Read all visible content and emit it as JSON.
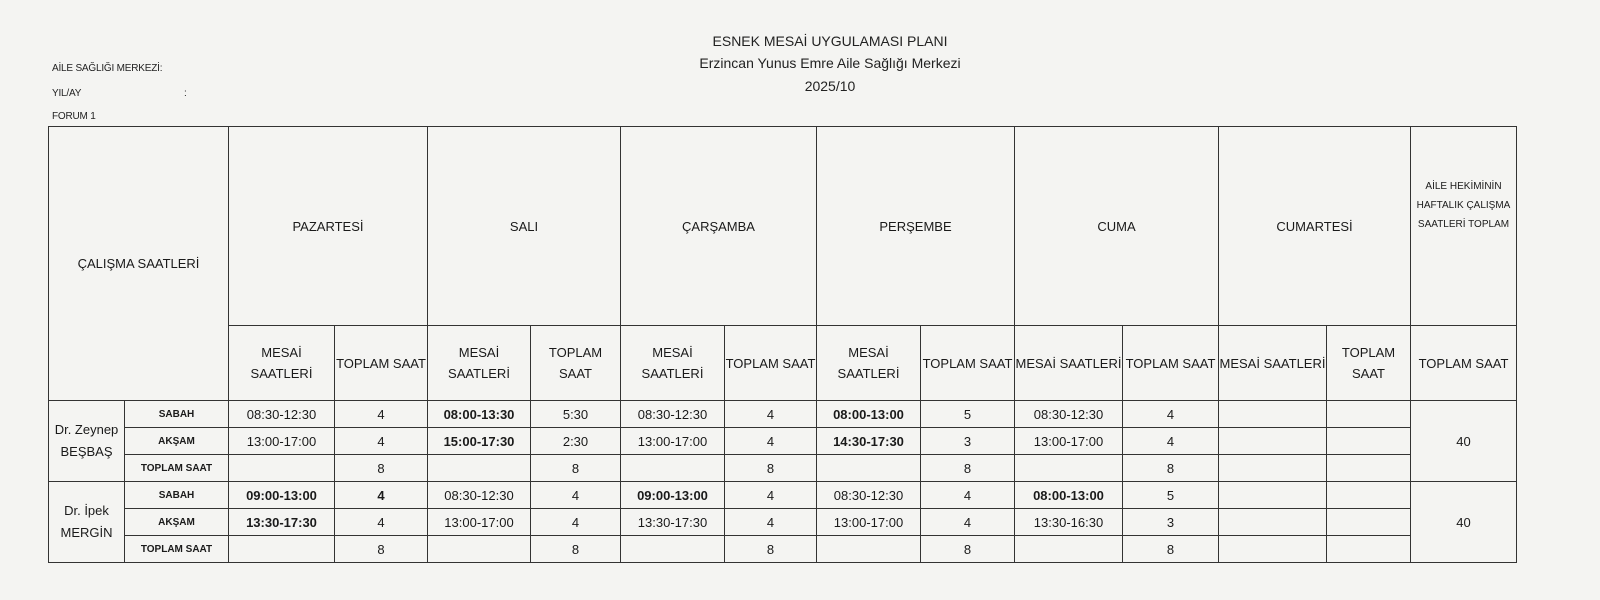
{
  "header": {
    "left_labels": [
      "AİLE SAĞLIĞI MERKEZİ:",
      "YIL/AY",
      ":",
      "FORUM 1"
    ],
    "title": "ESNEK MESAİ UYGULAMASI  PLANI",
    "center_name": "Erzincan Yunus Emre Aile Sağlığı Merkezi",
    "period": "2025/10"
  },
  "table": {
    "corner_label": "ÇALIŞMA SAATLERİ",
    "days": [
      "PAZARTESİ",
      "SALI",
      "ÇARŞAMBA",
      "PERŞEMBE",
      "CUMA",
      "CUMARTESİ"
    ],
    "weekly_total_header": "AİLE HEKİMİNİN HAFTALIK ÇALIŞMA SAATLERİ TOPLAM",
    "sub_mesai": "MESAİ SAATLERİ",
    "sub_toplam": "TOPLAM SAAT",
    "sub_weekly": "TOPLAM SAAT",
    "doctors": [
      {
        "name": "Dr. Zeynep BEŞBAŞ",
        "weekly_total": "40",
        "rows": [
          {
            "label": "SABAH",
            "cells": [
              {
                "v": "08:30-12:30"
              },
              {
                "v": "4"
              },
              {
                "v": "08:00-13:30",
                "bold": true
              },
              {
                "v": "5:30"
              },
              {
                "v": "08:30-12:30"
              },
              {
                "v": "4"
              },
              {
                "v": "08:00-13:00",
                "bold": true
              },
              {
                "v": "5"
              },
              {
                "v": "08:30-12:30"
              },
              {
                "v": "4"
              },
              {
                "v": ""
              },
              {
                "v": ""
              }
            ]
          },
          {
            "label": "AKŞAM",
            "cells": [
              {
                "v": "13:00-17:00"
              },
              {
                "v": "4"
              },
              {
                "v": "15:00-17:30",
                "bold": true
              },
              {
                "v": "2:30"
              },
              {
                "v": "13:00-17:00"
              },
              {
                "v": "4"
              },
              {
                "v": "14:30-17:30",
                "bold": true
              },
              {
                "v": "3"
              },
              {
                "v": "13:00-17:00"
              },
              {
                "v": "4"
              },
              {
                "v": ""
              },
              {
                "v": ""
              }
            ]
          },
          {
            "label": "TOPLAM SAAT",
            "cells": [
              {
                "v": ""
              },
              {
                "v": "8"
              },
              {
                "v": ""
              },
              {
                "v": "8"
              },
              {
                "v": ""
              },
              {
                "v": "8"
              },
              {
                "v": ""
              },
              {
                "v": "8"
              },
              {
                "v": ""
              },
              {
                "v": "8"
              },
              {
                "v": ""
              },
              {
                "v": ""
              }
            ]
          }
        ]
      },
      {
        "name": "Dr. İpek MERGİN",
        "weekly_total": "40",
        "rows": [
          {
            "label": "SABAH",
            "cells": [
              {
                "v": "09:00-13:00",
                "bold": true
              },
              {
                "v": "4",
                "bold": true
              },
              {
                "v": "08:30-12:30"
              },
              {
                "v": "4"
              },
              {
                "v": "09:00-13:00",
                "bold": true
              },
              {
                "v": "4"
              },
              {
                "v": "08:30-12:30"
              },
              {
                "v": "4"
              },
              {
                "v": "08:00-13:00",
                "bold": true
              },
              {
                "v": "5"
              },
              {
                "v": ""
              },
              {
                "v": ""
              }
            ]
          },
          {
            "label": "AKŞAM",
            "cells": [
              {
                "v": "13:30-17:30",
                "bold": true
              },
              {
                "v": "4"
              },
              {
                "v": "13:00-17:00"
              },
              {
                "v": "4"
              },
              {
                "v": "13:30-17:30"
              },
              {
                "v": "4"
              },
              {
                "v": "13:00-17:00"
              },
              {
                "v": "4"
              },
              {
                "v": "13:30-16:30"
              },
              {
                "v": "3"
              },
              {
                "v": ""
              },
              {
                "v": ""
              }
            ]
          },
          {
            "label": "TOPLAM SAAT",
            "cells": [
              {
                "v": ""
              },
              {
                "v": "8"
              },
              {
                "v": ""
              },
              {
                "v": "8"
              },
              {
                "v": ""
              },
              {
                "v": "8"
              },
              {
                "v": ""
              },
              {
                "v": "8"
              },
              {
                "v": ""
              },
              {
                "v": "8"
              },
              {
                "v": ""
              },
              {
                "v": ""
              }
            ]
          }
        ]
      }
    ]
  }
}
